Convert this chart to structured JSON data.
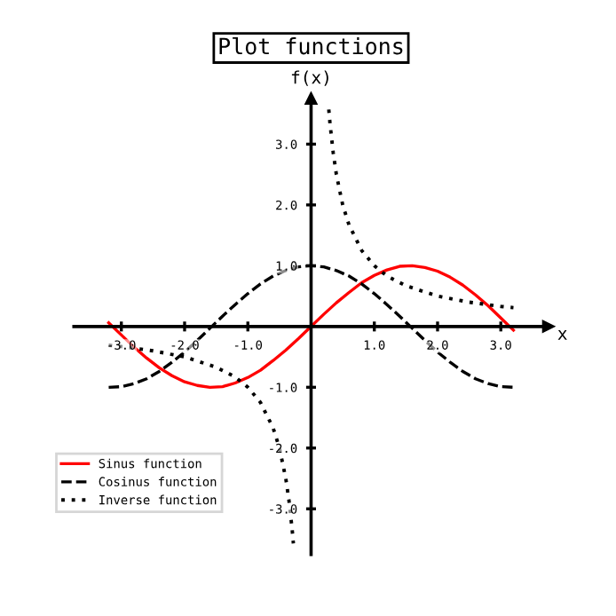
{
  "chart_data": {
    "type": "line",
    "title": "Plot functions",
    "xlabel": "x",
    "ylabel": "f(x)",
    "xlim": [
      -3.75,
      3.75
    ],
    "ylim": [
      -3.75,
      3.75
    ],
    "xticks": [
      {
        "value": -3,
        "label": "-3.0"
      },
      {
        "value": -2,
        "label": "-2.0"
      },
      {
        "value": -1,
        "label": "-1.0"
      },
      {
        "value": 1,
        "label": "1.0"
      },
      {
        "value": 2,
        "label": "2.0"
      },
      {
        "value": 3,
        "label": "3.0"
      }
    ],
    "yticks": [
      {
        "value": -3,
        "label": "-3.0"
      },
      {
        "value": -2,
        "label": "-2.0"
      },
      {
        "value": -1,
        "label": "-1.0"
      },
      {
        "value": 1,
        "label": "1.0"
      },
      {
        "value": 2,
        "label": "2.0"
      },
      {
        "value": 3,
        "label": "3.0"
      }
    ],
    "grid": false,
    "legend": "bottom left",
    "marker": "none",
    "series": [
      {
        "name": "Sinus function",
        "color": "#ff0000",
        "line_style": "solid",
        "x": [
          -3.2,
          -3.0,
          -2.8,
          -2.6,
          -2.4,
          -2.2,
          -2.0,
          -1.8,
          -1.6,
          -1.4,
          -1.2,
          -1.0,
          -0.8,
          -0.6,
          -0.4,
          -0.2,
          0,
          0.2,
          0.4,
          0.6,
          0.8,
          1.0,
          1.2,
          1.4,
          1.6,
          1.8,
          2.0,
          2.2,
          2.4,
          2.6,
          2.8,
          3.0,
          3.2
        ],
        "values": [
          0.06,
          -0.14,
          -0.34,
          -0.52,
          -0.68,
          -0.81,
          -0.91,
          -0.97,
          -1.0,
          -0.99,
          -0.93,
          -0.84,
          -0.72,
          -0.56,
          -0.39,
          -0.2,
          0,
          0.2,
          0.39,
          0.56,
          0.72,
          0.84,
          0.93,
          0.99,
          1.0,
          0.97,
          0.91,
          0.81,
          0.68,
          0.52,
          0.34,
          0.14,
          -0.06
        ]
      },
      {
        "name": "Cosinus function",
        "color": "#000000",
        "line_style": "dashed",
        "x": [
          -3.2,
          -3.0,
          -2.8,
          -2.6,
          -2.4,
          -2.2,
          -2.0,
          -1.8,
          -1.6,
          -1.4,
          -1.2,
          -1.0,
          -0.8,
          -0.6,
          -0.4,
          -0.2,
          0,
          0.2,
          0.4,
          0.6,
          0.8,
          1.0,
          1.2,
          1.4,
          1.6,
          1.8,
          2.0,
          2.2,
          2.4,
          2.6,
          2.8,
          3.0,
          3.2
        ],
        "values": [
          -1.0,
          -0.99,
          -0.94,
          -0.86,
          -0.74,
          -0.59,
          -0.42,
          -0.23,
          -0.03,
          0.17,
          0.36,
          0.54,
          0.7,
          0.83,
          0.92,
          0.98,
          1.0,
          0.98,
          0.92,
          0.83,
          0.7,
          0.54,
          0.36,
          0.17,
          -0.03,
          -0.23,
          -0.42,
          -0.59,
          -0.74,
          -0.86,
          -0.94,
          -0.99,
          -1.0
        ]
      },
      {
        "name": "Inverse function",
        "color": "#000000",
        "line_style": "dotted",
        "x": [
          -3.2,
          -3.0,
          -2.5,
          -2.0,
          -1.5,
          -1.2,
          -1.0,
          -0.8,
          -0.6,
          -0.5,
          -0.4,
          -0.35,
          -0.3,
          -0.28,
          0,
          0.28,
          0.3,
          0.35,
          0.4,
          0.5,
          0.6,
          0.8,
          1.0,
          1.2,
          1.5,
          2.0,
          2.5,
          3.0,
          3.2
        ],
        "values": [
          -0.31,
          -0.33,
          -0.4,
          -0.5,
          -0.67,
          -0.83,
          -1.0,
          -1.25,
          -1.67,
          -2.0,
          -2.5,
          -2.86,
          -3.33,
          -3.57,
          null,
          3.57,
          3.33,
          2.86,
          2.5,
          2.0,
          1.67,
          1.25,
          1.0,
          0.83,
          0.67,
          0.5,
          0.4,
          0.33,
          0.31
        ]
      }
    ]
  }
}
